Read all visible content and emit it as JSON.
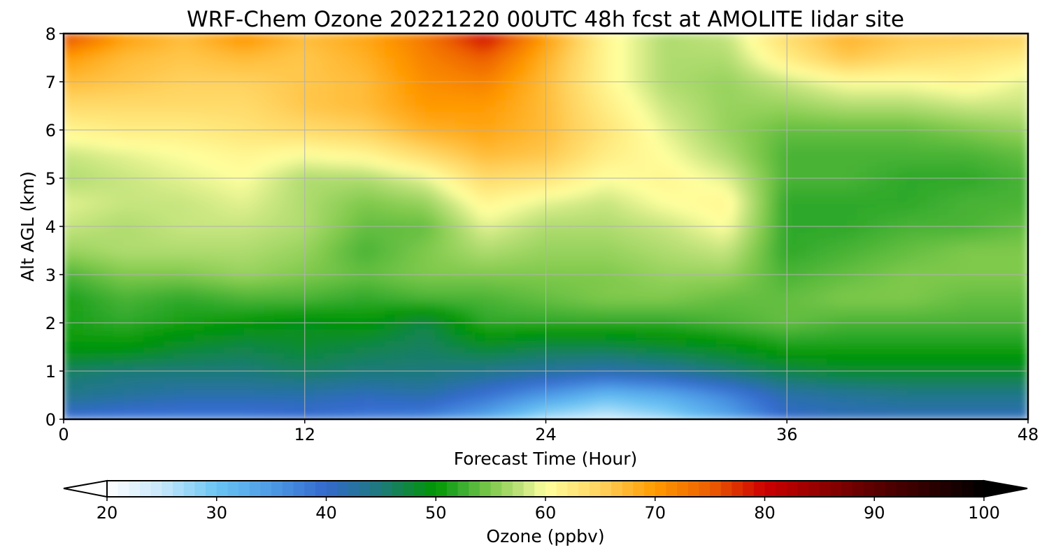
{
  "chart_data": {
    "type": "heatmap",
    "title": "WRF-Chem Ozone  20221220 00UTC 48h fcst at AMOLITE lidar site",
    "xlabel": "Forecast Time (Hour)",
    "ylabel": "Alt AGL (km)",
    "xlim": [
      0,
      48
    ],
    "ylim": [
      0,
      8
    ],
    "x_ticks": [
      0,
      12,
      24,
      36,
      48
    ],
    "y_ticks": [
      0,
      1,
      2,
      3,
      4,
      5,
      6,
      7,
      8
    ],
    "grid": true,
    "colorbar": {
      "label": "Ozone  (ppbv)",
      "min": 20,
      "max": 100,
      "ticks": [
        20,
        30,
        40,
        50,
        60,
        70,
        80,
        90,
        100
      ],
      "extend": "both",
      "stops": [
        {
          "value": 20,
          "color": "#ffffff"
        },
        {
          "value": 25,
          "color": "#c6e8fb"
        },
        {
          "value": 30,
          "color": "#6ac4f3"
        },
        {
          "value": 35,
          "color": "#4d9be6"
        },
        {
          "value": 40,
          "color": "#3369cc"
        },
        {
          "value": 45,
          "color": "#1d7a7a"
        },
        {
          "value": 50,
          "color": "#009600"
        },
        {
          "value": 52,
          "color": "#2ea82a"
        },
        {
          "value": 55,
          "color": "#7fc94c"
        },
        {
          "value": 58,
          "color": "#c7e580"
        },
        {
          "value": 60,
          "color": "#ffff9e"
        },
        {
          "value": 65,
          "color": "#ffd25e"
        },
        {
          "value": 70,
          "color": "#ff9a00"
        },
        {
          "value": 75,
          "color": "#ec5e00"
        },
        {
          "value": 80,
          "color": "#cc0000"
        },
        {
          "value": 90,
          "color": "#5a0000"
        },
        {
          "value": 100,
          "color": "#000000"
        }
      ]
    },
    "x": [
      0,
      3,
      6,
      9,
      12,
      15,
      18,
      21,
      24,
      27,
      30,
      33,
      36,
      39,
      42,
      45,
      48
    ],
    "y": [
      0,
      0.5,
      1,
      1.5,
      2,
      2.5,
      3,
      3.5,
      4,
      4.5,
      5,
      5.5,
      6,
      6.5,
      7,
      7.5,
      8
    ],
    "z": [
      [
        39,
        38,
        38,
        38,
        39,
        38,
        37,
        33,
        26,
        24,
        27,
        33,
        40,
        41,
        41,
        41,
        41
      ],
      [
        44,
        43,
        42,
        42,
        42,
        41,
        42,
        39,
        35,
        31,
        33,
        37,
        42,
        43,
        44,
        44,
        44
      ],
      [
        46,
        45,
        45,
        45,
        46,
        45,
        45,
        44,
        43,
        42,
        43,
        45,
        47,
        48,
        48,
        48,
        48
      ],
      [
        50,
        50,
        48,
        47,
        48,
        47,
        46,
        48,
        47,
        47,
        48,
        49,
        51,
        51,
        51,
        51,
        51
      ],
      [
        51,
        52,
        51,
        50,
        49,
        50,
        47,
        52,
        52,
        52,
        52,
        53,
        54,
        53,
        53,
        53,
        53
      ],
      [
        51,
        53,
        52,
        53,
        53,
        52,
        53,
        53,
        54,
        55,
        55,
        54,
        54,
        55,
        55,
        54,
        54
      ],
      [
        53,
        55,
        55,
        56,
        55,
        54,
        55,
        55,
        55,
        55,
        56,
        56,
        53,
        54,
        55,
        55,
        55
      ],
      [
        56,
        57,
        57,
        57,
        56,
        53,
        55,
        57,
        56,
        56,
        57,
        58,
        52,
        53,
        54,
        55,
        55
      ],
      [
        58,
        57,
        58,
        58,
        57,
        54,
        54,
        59,
        57,
        57,
        58,
        60,
        52,
        52,
        53,
        53,
        54
      ],
      [
        59,
        58,
        58,
        59,
        57,
        55,
        56,
        61,
        59,
        58,
        60,
        61,
        52,
        52,
        52,
        53,
        53
      ],
      [
        57,
        58,
        59,
        60,
        57,
        57,
        59,
        64,
        63,
        60,
        61,
        59,
        53,
        53,
        52,
        52,
        53
      ],
      [
        58,
        59,
        60,
        61,
        60,
        61,
        64,
        67,
        66,
        62,
        60,
        57,
        53,
        53,
        53,
        53,
        54
      ],
      [
        61,
        62,
        62,
        63,
        64,
        65,
        68,
        69,
        67,
        63,
        59,
        56,
        54,
        54,
        54,
        55,
        56
      ],
      [
        64,
        64,
        64,
        64,
        66,
        67,
        70,
        70,
        67,
        62,
        58,
        56,
        56,
        57,
        57,
        58,
        58
      ],
      [
        67,
        66,
        65,
        65,
        66,
        67,
        71,
        72,
        67,
        61,
        57,
        56,
        58,
        60,
        60,
        61,
        59
      ],
      [
        70,
        67,
        66,
        67,
        66,
        68,
        72,
        75,
        68,
        61,
        57,
        57,
        62,
        66,
        64,
        63,
        62
      ],
      [
        77,
        70,
        67,
        71,
        67,
        69,
        73,
        80,
        70,
        61,
        57,
        58,
        64,
        68,
        66,
        66,
        65
      ]
    ]
  }
}
